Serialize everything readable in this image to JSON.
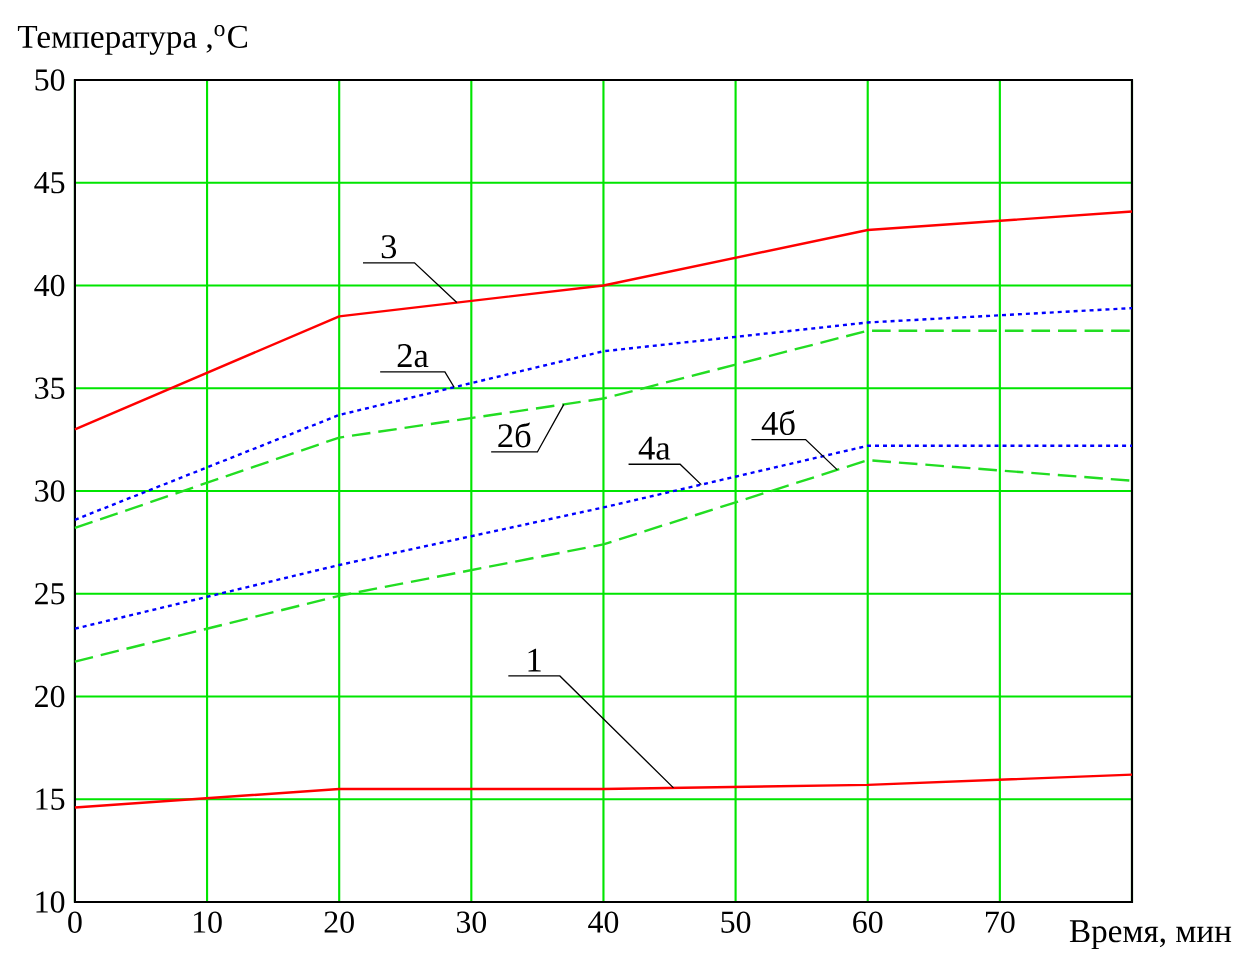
{
  "chart_data": {
    "type": "line",
    "ylabel": "Температура ,$^{o}$C",
    "xlabel": "Время, мин",
    "x": [
      0,
      20,
      40,
      60,
      80
    ],
    "series": [
      {
        "name": "1",
        "color": "#ff0000",
        "line_style": "solid",
        "values": [
          14.6,
          15.5,
          15.5,
          15.7,
          16.2
        ]
      },
      {
        "name": "2а",
        "color": "#0000ff",
        "line_style": "dotted",
        "values": [
          28.6,
          33.7,
          36.8,
          38.2,
          38.9
        ]
      },
      {
        "name": "2б",
        "color": "#22dd22",
        "line_style": "dashed",
        "values": [
          28.2,
          32.6,
          34.5,
          37.8,
          37.8
        ]
      },
      {
        "name": "3",
        "color": "#ff0000",
        "line_style": "solid",
        "values": [
          33.0,
          38.5,
          40.0,
          42.7,
          43.6
        ]
      },
      {
        "name": "4а",
        "color": "#0000ff",
        "line_style": "dotted",
        "values": [
          23.3,
          26.4,
          29.2,
          32.2,
          32.2
        ]
      },
      {
        "name": "4б",
        "color": "#22dd22",
        "line_style": "dashed",
        "values": [
          21.7,
          24.9,
          27.4,
          31.5,
          30.5
        ]
      }
    ],
    "xlim": [
      0,
      80
    ],
    "ylim": [
      10,
      50
    ],
    "xticks": [
      0,
      10,
      20,
      30,
      40,
      50,
      60,
      70,
      {
        "value": 80,
        "label": null
      }
    ],
    "yticks": [
      10,
      15,
      20,
      25,
      30,
      35,
      40,
      45,
      50
    ],
    "grid": true,
    "legend": false,
    "marker": "none"
  }
}
